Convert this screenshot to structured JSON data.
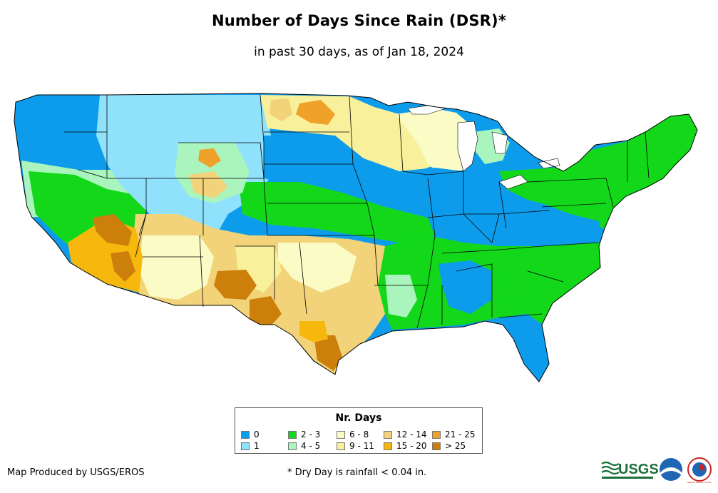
{
  "title": "Number of Days Since Rain (DSR)*",
  "subtitle": "in past 30 days, as of Jan 18, 2024",
  "legend": {
    "title": "Nr. Days",
    "items": [
      {
        "label": "0",
        "color": "#0d9ceb"
      },
      {
        "label": "1",
        "color": "#8fe1fc"
      },
      {
        "label": "2 - 3",
        "color": "#13d81a"
      },
      {
        "label": "4 - 5",
        "color": "#a9f5bd"
      },
      {
        "label": "6 - 8",
        "color": "#fbfbc6"
      },
      {
        "label": "9 - 11",
        "color": "#f8f09a"
      },
      {
        "label": "12 - 14",
        "color": "#f3d37a"
      },
      {
        "label": "15 - 20",
        "color": "#f6b80c"
      },
      {
        "label": "21 - 25",
        "color": "#f0a12a"
      },
      {
        "label": "> 25",
        "color": "#cc7f0b"
      }
    ]
  },
  "credit": "Map Produced by USGS/EROS",
  "footnote": "* Dry Day is rainfall < 0.04 in.",
  "logos": {
    "usgs": "USGS",
    "noaa": "noaa",
    "nws": "National Weather Service"
  }
}
